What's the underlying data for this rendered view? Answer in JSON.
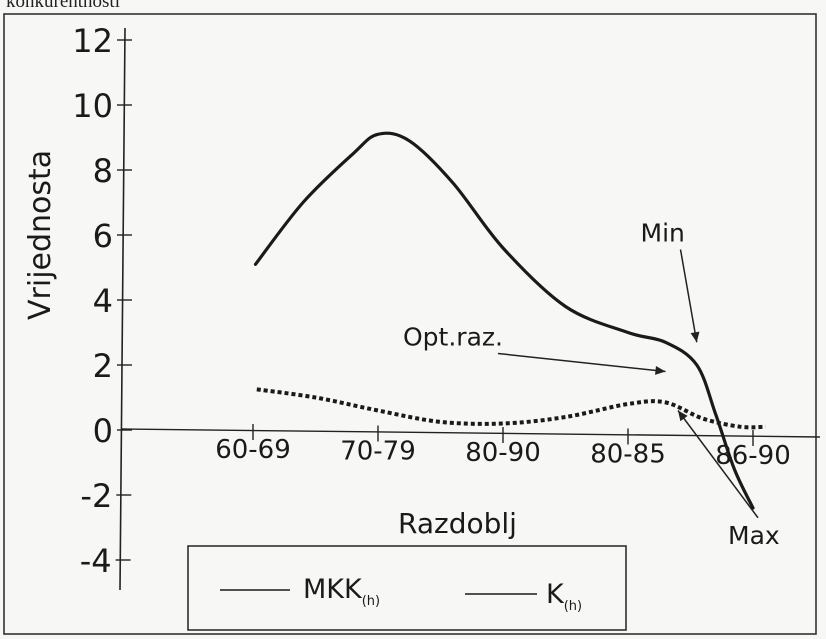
{
  "header": {
    "cut_title": "konkurentnosti"
  },
  "chart_data": {
    "type": "line",
    "title": "",
    "xlabel": "Razdoblj",
    "ylabel": "Vrijednosta",
    "ylim": [
      -4,
      12
    ],
    "y_ticks": [
      12,
      10,
      8,
      6,
      4,
      2,
      0,
      -2,
      -4
    ],
    "x_ticks": [
      "60-69",
      "70-79",
      "80-90",
      "80-85",
      "86-90"
    ],
    "series": [
      {
        "name": "MKK(h)",
        "legend_main": "MKK",
        "legend_sub": "(h)",
        "style": "solid",
        "color": "#1a1a1a",
        "points": [
          [
            0.02,
            5.1
          ],
          [
            0.4,
            7.0
          ],
          [
            0.8,
            8.5
          ],
          [
            1.0,
            9.1
          ],
          [
            1.25,
            8.9
          ],
          [
            1.6,
            7.6
          ],
          [
            2.0,
            5.6
          ],
          [
            2.5,
            3.8
          ],
          [
            3.0,
            3.0
          ],
          [
            3.3,
            2.7
          ],
          [
            3.55,
            2.0
          ],
          [
            3.7,
            0.5
          ],
          [
            3.85,
            -1.2
          ],
          [
            4.0,
            -2.4
          ]
        ]
      },
      {
        "name": "K(h)",
        "legend_main": "K",
        "legend_sub": "(h)",
        "style": "dotted",
        "color": "#1a1a1a",
        "points": [
          [
            0.03,
            1.25
          ],
          [
            0.5,
            1.0
          ],
          [
            1.0,
            0.6
          ],
          [
            1.5,
            0.25
          ],
          [
            2.0,
            0.2
          ],
          [
            2.5,
            0.4
          ],
          [
            3.0,
            0.8
          ],
          [
            3.3,
            0.85
          ],
          [
            3.6,
            0.35
          ],
          [
            3.9,
            0.1
          ],
          [
            4.1,
            0.1
          ]
        ]
      }
    ],
    "annotations": [
      {
        "text": "Min",
        "anchor": [
          3.55,
          2.7
        ],
        "label_pos": [
          3.1,
          5.8
        ]
      },
      {
        "text": "Opt.raz.",
        "anchor": [
          3.3,
          1.8
        ],
        "label_pos": [
          1.2,
          2.6
        ]
      },
      {
        "text": "Max",
        "anchor": [
          3.4,
          0.6
        ],
        "label_pos": [
          3.8,
          -3.5
        ]
      }
    ],
    "legend_position": "bottom",
    "grid": false
  }
}
